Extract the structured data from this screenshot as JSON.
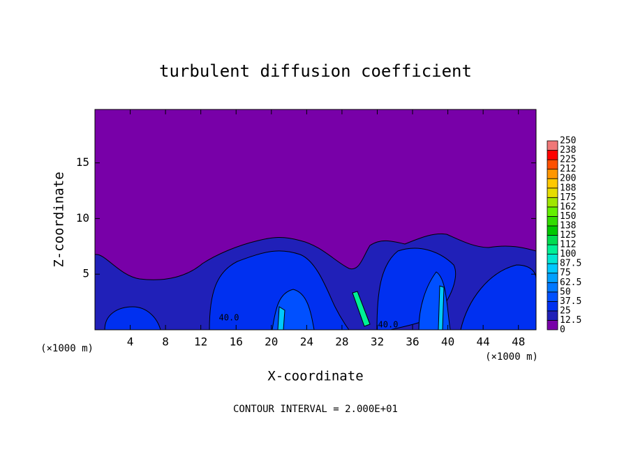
{
  "chart_data": {
    "type": "contour",
    "title": "turbulent diffusion coefficient",
    "x_label": "X-coordinate",
    "y_label": "Z-coordinate",
    "x_unit_left": "(×1000 m)",
    "x_unit_right": "(×1000 m)",
    "footer": "CONTOUR INTERVAL = 2.000E+01",
    "xlim": [
      0,
      50
    ],
    "xticks": [
      4,
      8,
      12,
      16,
      20,
      24,
      28,
      32,
      36,
      40,
      44,
      48
    ],
    "ylim": [
      0,
      19.8
    ],
    "yticks": [
      5,
      10,
      15
    ],
    "background_level": 0,
    "levels": [
      0,
      12.5,
      25,
      37.5,
      50,
      62.5,
      75,
      87.5,
      100,
      112,
      125,
      138,
      150,
      162,
      175,
      188,
      200,
      212,
      225,
      238,
      250
    ],
    "colors": [
      "#7800a8",
      "#2020b8",
      "#0030f0",
      "#0050ff",
      "#0078ff",
      "#00a0ff",
      "#00c8ff",
      "#00e6d2",
      "#00f096",
      "#00dc50",
      "#00c800",
      "#32dc00",
      "#64f000",
      "#a0e600",
      "#e6dc00",
      "#ffc800",
      "#ff9600",
      "#ff5000",
      "#ff0000",
      "#f07878"
    ],
    "regions": [
      12.5,
      25,
      25,
      25,
      25,
      37.5,
      37.5,
      75,
      75,
      100
    ],
    "contour_labels": [
      {
        "value": 40,
        "label": "40.0"
      },
      {
        "value": 40,
        "label": "40.0"
      }
    ]
  }
}
